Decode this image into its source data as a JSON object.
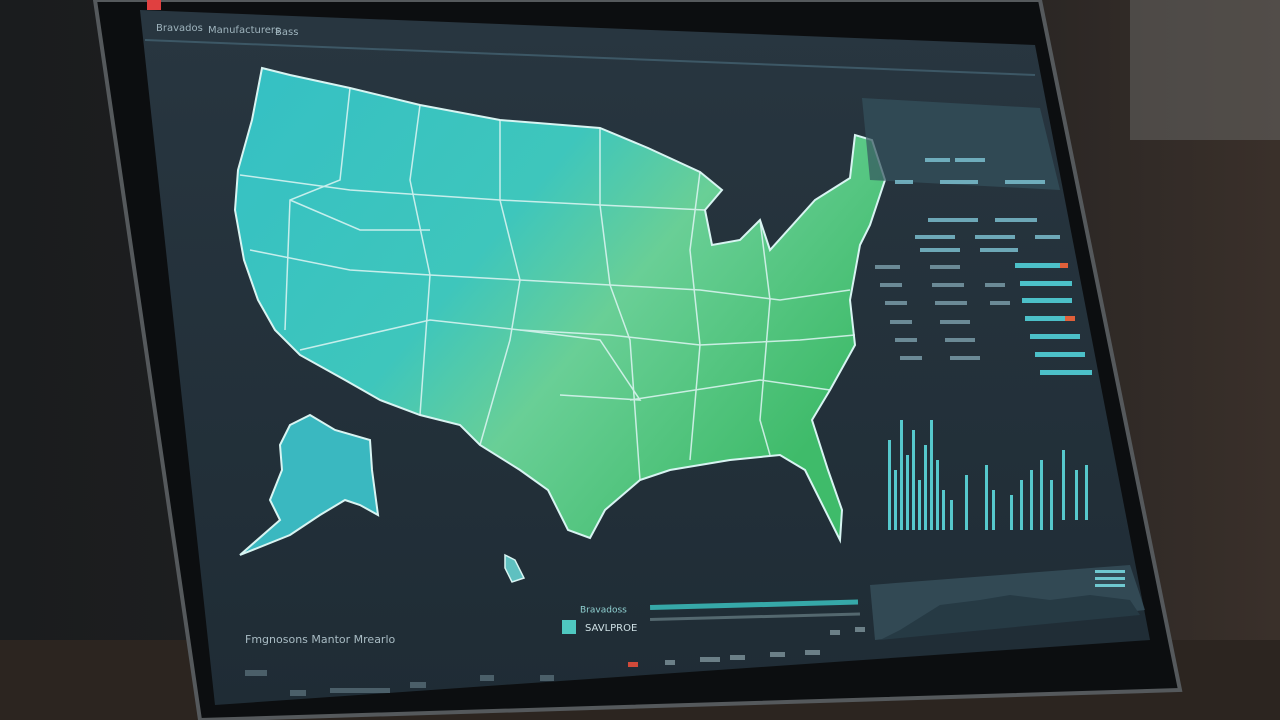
{
  "header": {
    "tabs": [
      "Bravados",
      "Manufacturers",
      "Bass"
    ]
  },
  "map_panel": {
    "caption": "Fmgnosons Mantor Mrearlo"
  },
  "bottom_panel": {
    "title": "Bravadoss",
    "subtitle": "SAVLPROE"
  }
}
